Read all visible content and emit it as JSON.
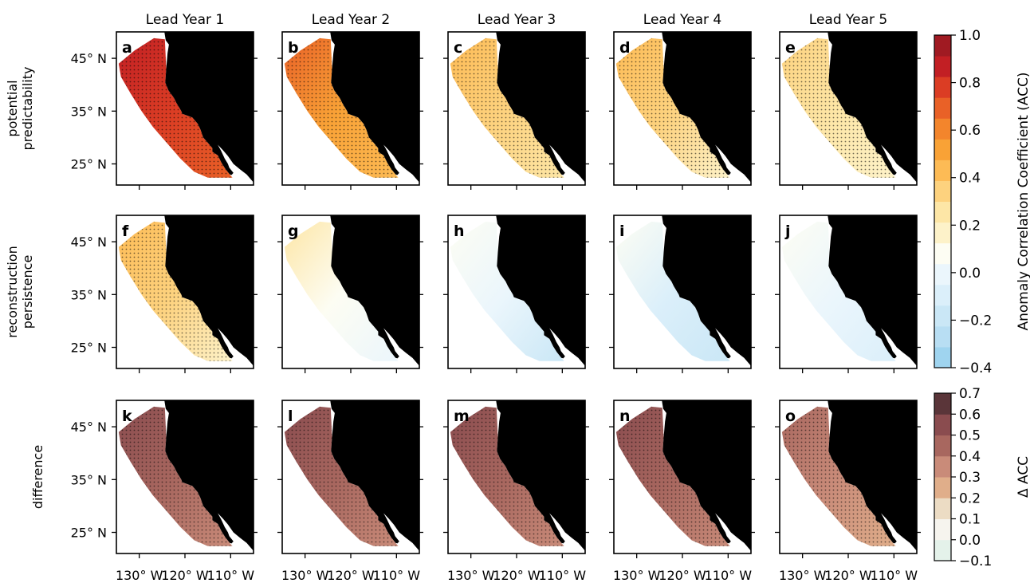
{
  "chart_data": {
    "type": "heatmap",
    "description_grid": "5 columns (lead years) x 3 rows (metrics) of map panels over the North American west coast ocean region",
    "columns": [
      "Lead Year 1",
      "Lead Year 2",
      "Lead Year 3",
      "Lead Year 4",
      "Lead Year 5"
    ],
    "rows": [
      {
        "label": "potential\npredictability",
        "label_lines": [
          "potential",
          "predictability"
        ],
        "panels": [
          "a",
          "b",
          "c",
          "d",
          "e"
        ],
        "colorbar": "acc"
      },
      {
        "label": "reconstruction\npersistence",
        "label_lines": [
          "reconstruction",
          "persistence"
        ],
        "panels": [
          "f",
          "g",
          "h",
          "i",
          "j"
        ],
        "colorbar": "acc"
      },
      {
        "label": "difference",
        "label_lines": [
          "difference"
        ],
        "panels": [
          "k",
          "l",
          "m",
          "n",
          "o"
        ],
        "colorbar": "dacc"
      }
    ],
    "y_tick_labels": [
      "45° N",
      "35° N",
      "25° N"
    ],
    "y_ticks": [
      45,
      35,
      25
    ],
    "x_tick_labels": [
      "130° W",
      "120° W",
      "110° W"
    ],
    "x_ticks": [
      -130,
      -120,
      -110
    ],
    "lon_range": [
      -135,
      -105
    ],
    "lat_range": [
      21,
      50
    ],
    "approx_panel_mean_values": {
      "potential_predictability": [
        0.75,
        0.55,
        0.35,
        0.3,
        0.25
      ],
      "reconstruction_persistence": [
        0.3,
        0.12,
        -0.05,
        -0.08,
        -0.03
      ],
      "difference": [
        0.45,
        0.45,
        0.45,
        0.4,
        0.3
      ]
    },
    "stippling": "significant grid points marked with black dots",
    "colorbars": {
      "acc": {
        "label": "Anomaly Correlation Coefficient (ACC)",
        "range": [
          -0.4,
          1.0
        ],
        "tick_labels": [
          "1.0",
          "0.8",
          "0.6",
          "0.4",
          "0.2",
          "0.0",
          "−0.2",
          "−0.4"
        ],
        "ticks": [
          1.0,
          0.8,
          0.6,
          0.4,
          0.2,
          0.0,
          -0.2,
          -0.4
        ],
        "colors": [
          "#9fd4ef",
          "#b8def3",
          "#cae7f6",
          "#dbeffa",
          "#ebf6fc",
          "#fdfdf3",
          "#fdf2c9",
          "#fde6a6",
          "#fdd27e",
          "#fdbb55",
          "#f9a236",
          "#f3852c",
          "#e96127",
          "#db3d24",
          "#c21f24",
          "#a01a22"
        ]
      },
      "dacc": {
        "label": "Δ ACC",
        "range": [
          -0.1,
          0.7
        ],
        "tick_labels": [
          "0.7",
          "0.6",
          "0.5",
          "0.4",
          "0.3",
          "0.2",
          "0.1",
          "0.0",
          "−0.1"
        ],
        "ticks": [
          0.7,
          0.6,
          0.5,
          0.4,
          0.3,
          0.2,
          0.1,
          0.0,
          -0.1
        ],
        "colors": [
          "#e4f2ea",
          "#f6f4ee",
          "#ecdcc4",
          "#e0ae8a",
          "#c98b79",
          "#a8675f",
          "#8a4c4f",
          "#5a3539"
        ]
      }
    }
  }
}
